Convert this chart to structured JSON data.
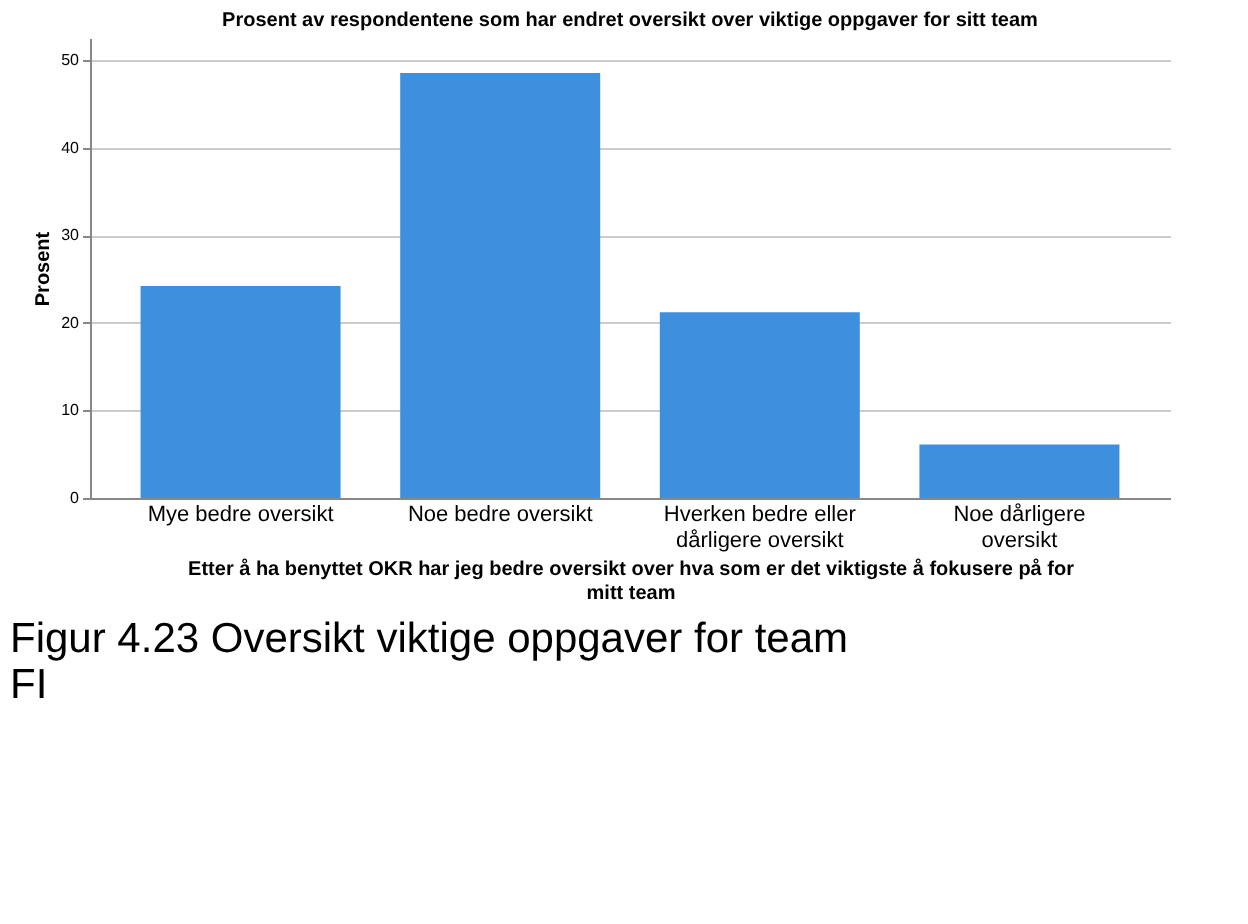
{
  "chart_data": {
    "type": "bar",
    "title": "Prosent av respondentene som har endret oversikt over viktige oppgaver for sitt team",
    "xlabel": "Etter å ha benyttet OKR har jeg bedre oversikt over hva som er det viktigste å fokusere på for mitt team",
    "ylabel": "Prosent",
    "categories": [
      "Mye bedre oversikt",
      "Noe bedre oversikt",
      "Hverken bedre eller dårligere oversikt",
      "Noe dårligere oversikt"
    ],
    "values": [
      24.2,
      48.5,
      21.2,
      6.1
    ],
    "color": "#3f8fdf",
    "ylim": [
      0,
      52.5
    ],
    "yticks": [
      0,
      10,
      20,
      30,
      40,
      50
    ],
    "grid": "y",
    "annotations": [
      "Figur 4.23 Oversikt viktige oppgaver for team FI"
    ]
  }
}
